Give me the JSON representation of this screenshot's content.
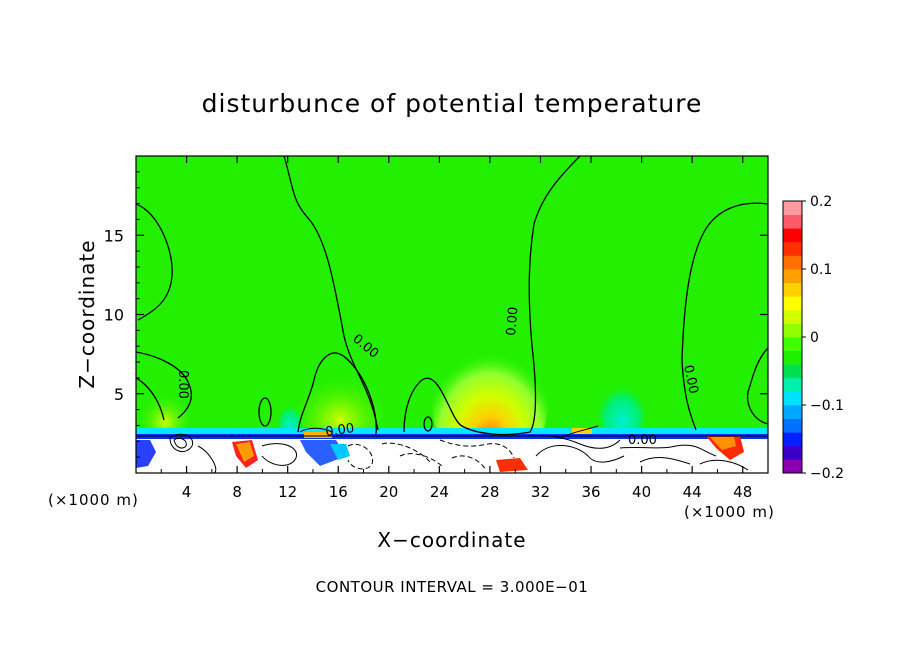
{
  "chart_data": {
    "type": "heatmap",
    "title": "disturbunce of potential temperature",
    "xlabel": "X−coordinate",
    "ylabel": "Z−coordinate",
    "x_unit": "(×1000 m)",
    "y_unit": "(×1000 m)",
    "footer": "CONTOUR INTERVAL = 3.000E−01",
    "xlim": [
      0,
      50
    ],
    "ylim": [
      0,
      20
    ],
    "x_ticks": [
      4,
      8,
      12,
      16,
      20,
      24,
      28,
      32,
      36,
      40,
      44,
      48
    ],
    "y_ticks": [
      5,
      10,
      15
    ],
    "contour_label": "0.00",
    "colorbar": {
      "range": [
        -0.2,
        0.2
      ],
      "tick_values": [
        0.2,
        0.1,
        0,
        -0.1,
        -0.2
      ],
      "tick_labels": [
        "0.2",
        "0.1",
        "0",
        "−0.1",
        "−0.2"
      ],
      "colors": [
        "#8a00b0",
        "#3a00c8",
        "#0020ff",
        "#0070ff",
        "#00a8ff",
        "#00e0ff",
        "#00f0b0",
        "#00e050",
        "#20f000",
        "#40ff00",
        "#90ff00",
        "#d0ff00",
        "#ffff00",
        "#ffd000",
        "#ffa000",
        "#ff7000",
        "#ff3000",
        "#ff0000",
        "#ff5a6a",
        "#ff9aa0"
      ]
    },
    "background_color": "#22f000",
    "surface_layer_top_z": 2.4
  }
}
